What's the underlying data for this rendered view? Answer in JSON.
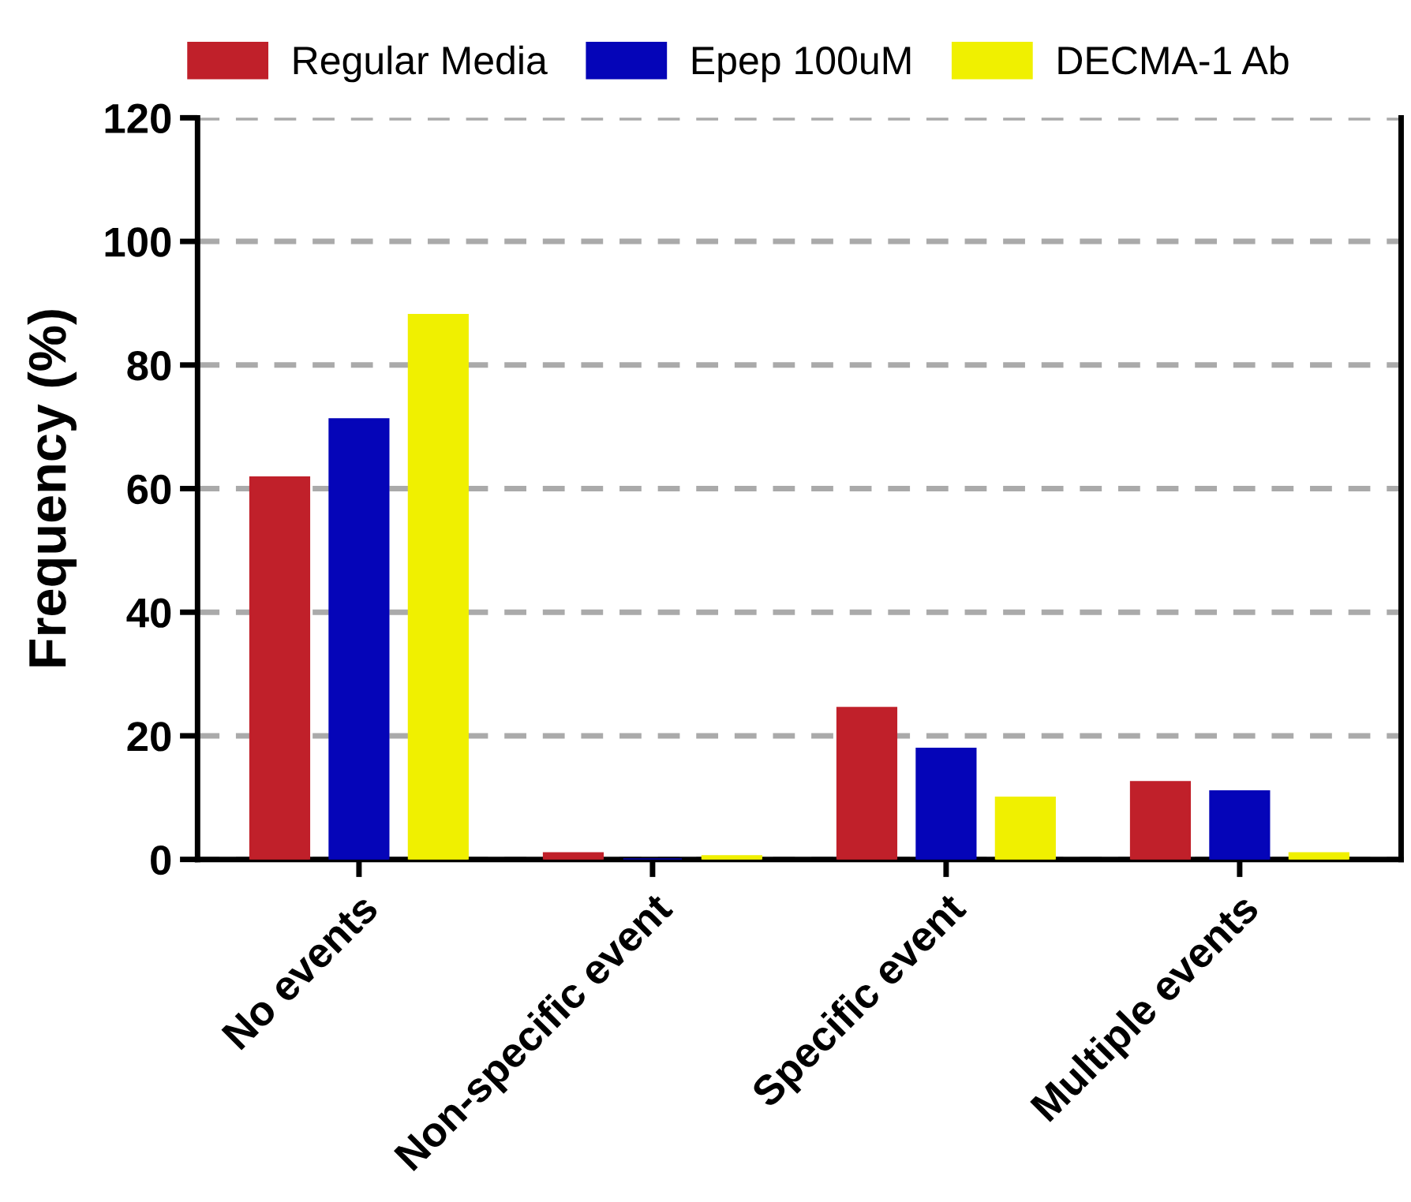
{
  "chart_data": {
    "type": "bar",
    "ylabel": "Frequency (%)",
    "categories": [
      "No events",
      "Non-specific event",
      "Specific event",
      "Multiple events"
    ],
    "series": [
      {
        "name": "Regular Media",
        "color": "#c0202a",
        "values": [
          61.8,
          1.0,
          24.5,
          12.5
        ]
      },
      {
        "name": "Epep 100uM",
        "color": "#0505b8",
        "values": [
          71.2,
          0,
          17.9,
          11.0
        ]
      },
      {
        "name": "DECMA-1 Ab",
        "color": "#f0f000",
        "values": [
          88.1,
          0.5,
          10.0,
          1.0
        ]
      }
    ],
    "ylim": [
      0,
      120
    ],
    "yticks": [
      0,
      20,
      40,
      60,
      80,
      100,
      120
    ],
    "grid": "y",
    "legend": "top"
  }
}
